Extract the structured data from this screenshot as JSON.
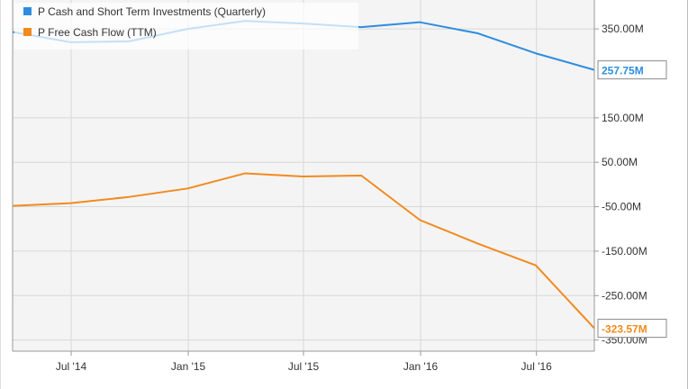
{
  "chart_data": {
    "type": "line",
    "x_ticks": [
      "Jul '14",
      "Jan '15",
      "Jul '15",
      "Jan '16",
      "Jul '16"
    ],
    "y_ticks": [
      "350.00M",
      "150.00M",
      "50.00M",
      "-50.00M",
      "-150.00M",
      "-250.00M",
      "-350.00M"
    ],
    "ylim": [
      -375,
      415
    ],
    "grid": true,
    "legend_position": "top-left",
    "series": [
      {
        "name": "P Cash and Short Term Investments (Quarterly)",
        "color": "#2e8de0",
        "end_label": "257.75M",
        "x": [
          "2014-03-31",
          "2014-06-30",
          "2014-09-30",
          "2014-12-31",
          "2015-03-31",
          "2015-06-30",
          "2015-09-30",
          "2015-12-31",
          "2016-03-31",
          "2016-06-30",
          "2016-09-30"
        ],
        "values": [
          343,
          320,
          322,
          350,
          368,
          362,
          354,
          365,
          340,
          295,
          257.75
        ]
      },
      {
        "name": "P Free Cash Flow (TTM)",
        "color": "#f28a1e",
        "end_label": "-323.57M",
        "x": [
          "2014-03-31",
          "2014-06-30",
          "2014-09-30",
          "2014-12-31",
          "2015-03-31",
          "2015-06-30",
          "2015-09-30",
          "2015-12-31",
          "2016-03-31",
          "2016-06-30",
          "2016-09-30"
        ],
        "values": [
          -48,
          -42,
          -28,
          -9,
          25,
          18,
          20,
          -80,
          -133,
          -182,
          -323.57
        ]
      }
    ]
  }
}
